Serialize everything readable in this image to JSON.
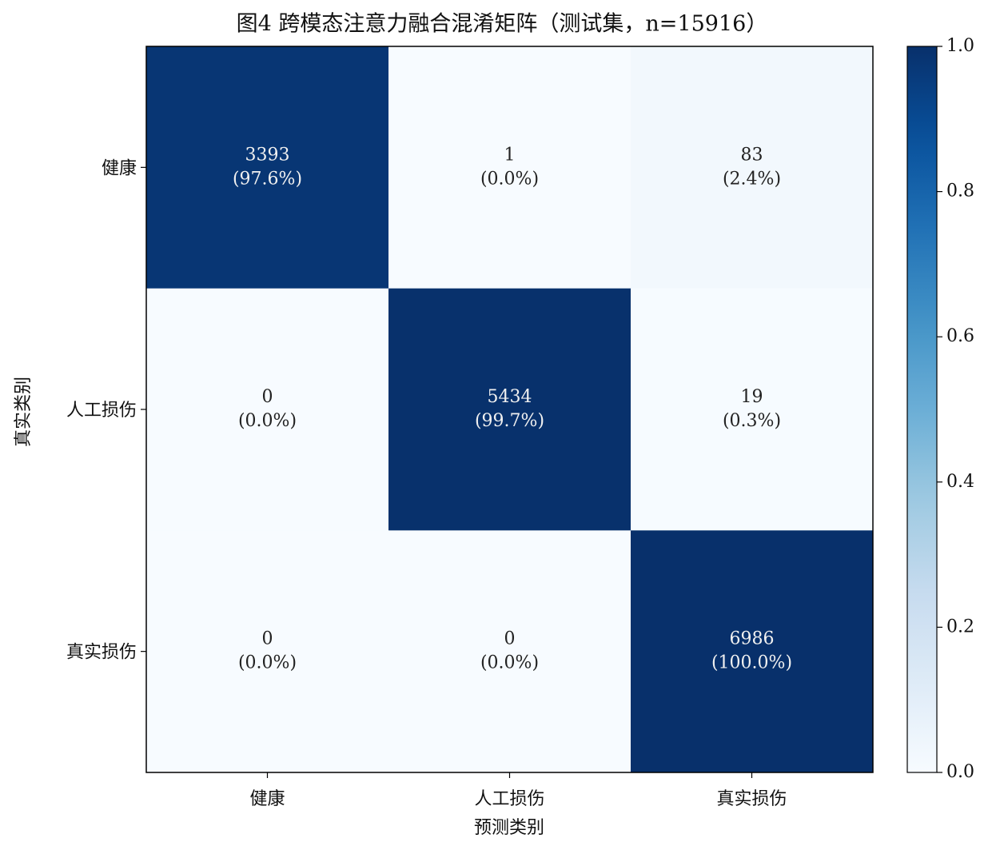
{
  "chart_data": {
    "type": "heatmap",
    "title": "图4 跨模态注意力融合混淆矩阵（测试集，n=15916）",
    "x_label": "预测类别",
    "y_label": "真实类别",
    "categories": [
      "健康",
      "人工损伤",
      "真实损伤"
    ],
    "values": [
      [
        3393,
        1,
        83
      ],
      [
        0,
        5434,
        19
      ],
      [
        0,
        0,
        6986
      ]
    ],
    "row_fraction": {
      "values": [
        [
          0.976,
          0.0,
          0.024
        ],
        [
          0.0,
          0.997,
          0.003
        ],
        [
          0.0,
          0.0,
          1.0
        ]
      ],
      "value_labels": [
        [
          "(97.6%)",
          "(0.0%)",
          "(2.4%)"
        ],
        [
          "(0.0%)",
          "(99.7%)",
          "(0.3%)"
        ],
        [
          "(0.0%)",
          "(0.0%)",
          "(100.0%)"
        ]
      ]
    },
    "cmap": "Blues",
    "clim": [
      0,
      1
    ],
    "cticks": [
      {
        "value": 0,
        "label": "0.0"
      },
      {
        "value": 0.2,
        "label": "0.2"
      },
      {
        "value": 0.4,
        "label": "0.4"
      },
      {
        "value": 0.6,
        "label": "0.6"
      },
      {
        "value": 0.8,
        "label": "0.8"
      },
      {
        "value": 1,
        "label": "1.0"
      }
    ]
  }
}
